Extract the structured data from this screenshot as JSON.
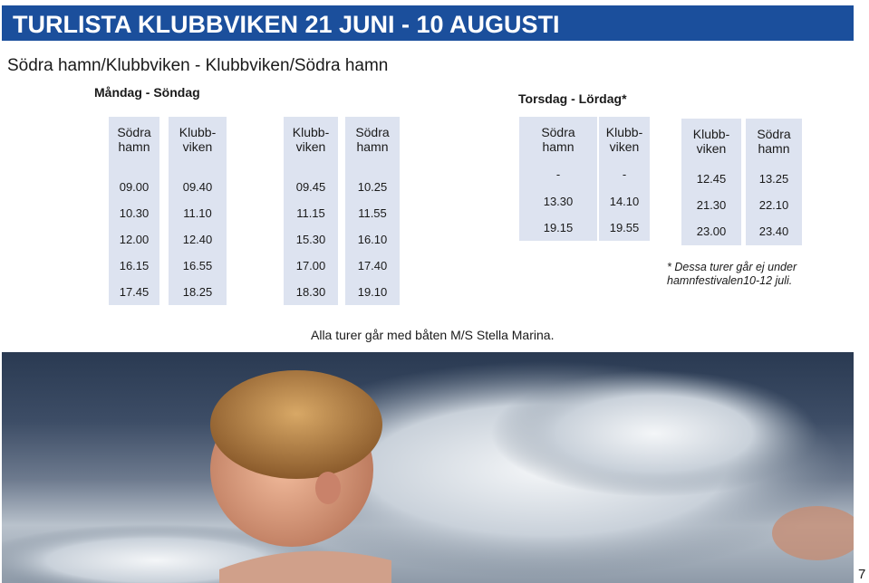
{
  "title": "TURLISTA KLUBBVIKEN 21 JUNI - 10 AUGUSTI",
  "subtitle": "Södra hamn/Klubbviken - Klubbviken/Södra hamn",
  "mon_sun": {
    "label": "Måndag - Söndag",
    "columns": [
      {
        "h1": "Södra",
        "h2": "hamn",
        "times": [
          "09.00",
          "10.30",
          "12.00",
          "16.15",
          "17.45"
        ]
      },
      {
        "h1": "Klubb-",
        "h2": "viken",
        "times": [
          "09.40",
          "11.10",
          "12.40",
          "16.55",
          "18.25"
        ]
      },
      {
        "h1": "Klubb-",
        "h2": "viken",
        "times": [
          "09.45",
          "11.15",
          "15.30",
          "17.00",
          "18.30"
        ]
      },
      {
        "h1": "Södra",
        "h2": "hamn",
        "times": [
          "10.25",
          "11.55",
          "16.10",
          "17.40",
          "19.10"
        ]
      }
    ]
  },
  "thu_sat": {
    "label": "Torsdag - Lördag*",
    "columns": [
      {
        "h1": "Södra",
        "h2": "hamn",
        "times": [
          "-",
          "13.30",
          "19.15"
        ]
      },
      {
        "h1": "Klubb-",
        "h2": "viken",
        "times": [
          "-",
          "14.10",
          "19.55"
        ]
      },
      {
        "h1": "Klubb-",
        "h2": "viken",
        "times": [
          "12.45",
          "21.30",
          "23.00"
        ]
      },
      {
        "h1": "Södra",
        "h2": "hamn",
        "times": [
          "13.25",
          "22.10",
          "23.40"
        ]
      }
    ],
    "note_line1": "* Dessa turer går ej under",
    "note_line2": "hamnfestivalen10-12 juli."
  },
  "footer": "Alla turer går med båten M/S Stella Marina.",
  "page_number": "7",
  "colors": {
    "banner": "#1b4f9c",
    "column_fill": "#dde3f0"
  }
}
